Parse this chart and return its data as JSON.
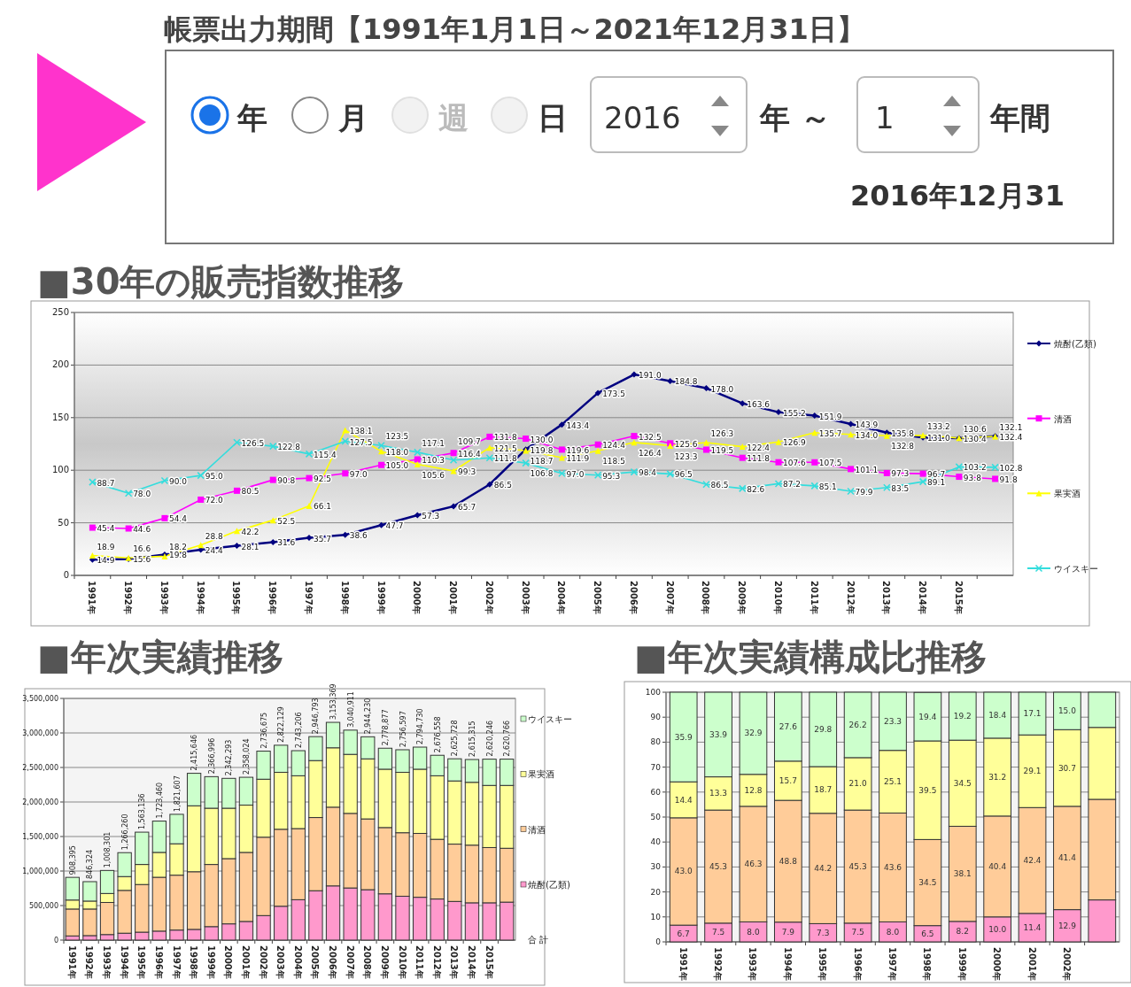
{
  "chart_data": [
    {
      "type": "other",
      "title": "帳票出力期間【1991年1月1日～2021年12月31日】",
      "annotations": [
        "年",
        "月",
        "週",
        "日",
        "2016",
        "年 ～",
        "1",
        "年間",
        "2016年12月31"
      ]
    },
    {
      "type": "line",
      "title": "■30年の販売指数推移",
      "categories": [
        "1991年",
        "1992年",
        "1993年",
        "1994年",
        "1995年",
        "1996年",
        "1997年",
        "1998年",
        "1999年",
        "2000年",
        "2001年",
        "2002年",
        "2003年",
        "2004年",
        "2005年",
        "2006年",
        "2007年",
        "2008年",
        "2009年",
        "2010年",
        "2011年",
        "2012年",
        "2013年",
        "2014年",
        "2015年",
        null
      ],
      "series": [
        {
          "name": "焼酎(乙類)",
          "color": "#000080",
          "marker": "diamond",
          "values": [
            14.9,
            15.6,
            19.8,
            24.4,
            28.1,
            31.6,
            35.7,
            38.6,
            47.7,
            57.3,
            65.7,
            86.5,
            119.8,
            143.4,
            173.5,
            191.0,
            184.8,
            178.0,
            163.6,
            155.2,
            151.9,
            143.9,
            135.8,
            131.0,
            130.4,
            132.4
          ],
          "value_labels": [
            "14.9",
            "15.6",
            "19.8",
            "24.4",
            "28.1",
            "31.6",
            "35.7",
            "38.6",
            "47.7",
            "57.3",
            "65.7",
            "86.5",
            "119.8",
            "143.4",
            "173.5",
            "191.0",
            "184.8",
            "178.0",
            "163.6",
            "155.2",
            "151.9",
            "143.9",
            "135.8",
            "131.0",
            "130.4",
            "132.4"
          ]
        },
        {
          "name": "清酒",
          "color": "#ff00ff",
          "marker": "square",
          "values": [
            45.4,
            44.6,
            54.4,
            72.0,
            80.5,
            90.8,
            92.5,
            97.0,
            105.0,
            110.3,
            116.4,
            131.8,
            130.0,
            119.6,
            124.4,
            132.5,
            125.6,
            119.5,
            111.8,
            107.6,
            107.5,
            101.1,
            97.3,
            96.7,
            93.8,
            91.8
          ],
          "value_labels": [
            "45.4",
            "44.6",
            "54.4",
            "72.0",
            "80.5",
            "90.8",
            "92.5",
            "97.0",
            "105.0",
            "110.3",
            "116.4",
            "131.8",
            "130.0",
            "119.6",
            "124.4",
            "132.5",
            "125.6",
            "119.5",
            "111.8",
            "107.6",
            "107.5",
            "101.1",
            "97.3",
            "96.7",
            "93.8",
            "91.8"
          ]
        },
        {
          "name": "果実酒",
          "color": "#ffff00",
          "marker": "triangle",
          "values": [
            18.9,
            16.6,
            18.2,
            28.8,
            42.2,
            52.5,
            66.1,
            138.1,
            118.0,
            105.6,
            99.3,
            121.5,
            118.7,
            111.9,
            118.5,
            126.4,
            123.3,
            126.3,
            122.4,
            126.9,
            135.7,
            134.0,
            132.8,
            133.2,
            130.6,
            132.1
          ],
          "value_labels": [
            "18.9",
            "16.6",
            "18.2",
            "28.8",
            "42.2",
            "52.5",
            "66.1",
            "138.1",
            "118.0",
            "105.6",
            "99.3",
            "121.5",
            "118.7",
            "111.9",
            "118.5",
            "126.4",
            "123.3",
            "126.3",
            "122.4",
            "126.9",
            "135.7",
            "134.0",
            "132.8",
            "133.2",
            "130.6",
            "132.1"
          ]
        },
        {
          "name": "ウイスキー",
          "color": "#33dddd",
          "marker": "cross",
          "values": [
            88.7,
            78.0,
            90.0,
            95.0,
            126.5,
            122.8,
            115.4,
            127.5,
            123.5,
            117.1,
            109.7,
            111.8,
            106.8,
            97.0,
            95.3,
            98.4,
            96.5,
            86.5,
            82.6,
            87.2,
            85.1,
            79.9,
            83.5,
            89.1,
            103.2,
            102.8
          ],
          "value_labels": [
            "88.7",
            "78.0",
            "90.0",
            "95.0",
            "126.5",
            "122.8",
            "115.4",
            "127.5",
            "123.5",
            "117.1",
            "109.7",
            "111.8",
            "106.8",
            "97.0",
            "95.3",
            "98.4",
            "96.5",
            "86.5",
            "82.6",
            "87.2",
            "85.1",
            "79.9",
            "83.5",
            "89.1",
            "103.2",
            "102.8"
          ]
        }
      ],
      "ylim": [
        0,
        250
      ],
      "yticks": [
        0,
        50,
        100,
        150,
        200,
        250
      ],
      "grid": "y",
      "legend": "right",
      "line_style": "solid"
    },
    {
      "type": "bar",
      "stacked": true,
      "title": "■年次実績推移",
      "categories": [
        "1991年",
        "1992年",
        "1993年",
        "1994年",
        "1995年",
        "1996年",
        "1997年",
        "1998年",
        "1999年",
        "2000年",
        "2001年",
        "2002年",
        "2003年",
        "2004年",
        "2005年",
        "2006年",
        "2007年",
        "2008年",
        "2009年",
        "2010年",
        "2011年",
        "2012年",
        "2013年",
        "2014年",
        "2015年",
        null
      ],
      "series": [
        {
          "name": "焼酎(乙類)",
          "color": "#ff99cc",
          "values": [
            60000,
            65000,
            80000,
            100000,
            115000,
            130000,
            145000,
            155000,
            195000,
            235000,
            270000,
            355000,
            490000,
            585000,
            715000,
            785000,
            755000,
            730000,
            670000,
            635000,
            620000,
            595000,
            560000,
            540000,
            540000,
            550000
          ]
        },
        {
          "name": "清酒",
          "color": "#ffcc99",
          "values": [
            390000,
            385000,
            465000,
            620000,
            690000,
            780000,
            795000,
            835000,
            900000,
            945000,
            1000000,
            1135000,
            1115000,
            1030000,
            1060000,
            1140000,
            1080000,
            1025000,
            960000,
            920000,
            925000,
            865000,
            830000,
            835000,
            800000,
            780000
          ]
        },
        {
          "name": "果実酒",
          "color": "#ffff99",
          "values": [
            130000,
            115000,
            130000,
            200000,
            290000,
            360000,
            455000,
            955000,
            815000,
            730000,
            685000,
            840000,
            825000,
            765000,
            825000,
            860000,
            855000,
            870000,
            845000,
            875000,
            930000,
            920000,
            915000,
            910000,
            900000,
            910000
          ]
        },
        {
          "name": "ウイスキー",
          "color": "#ccffcc",
          "values": [
            328395,
            281324,
            333301,
            346260,
            468136,
            453460,
            426607,
            470646,
            456996,
            432293,
            403024,
            406675,
            392129,
            363206,
            346793,
            368369,
            350911,
            319230,
            303877,
            326597,
            319730,
            296558,
            320728,
            330315,
            380246,
            380766
          ]
        }
      ],
      "totals": [
        "908,395",
        "846,324",
        "1,008,301",
        "1,266,260",
        "1,563,136",
        "1,723,460",
        "1,821,607",
        "2,415,646",
        "2,366,996",
        "2,342,293",
        "2,358,024",
        "2,736,675",
        "2,822,129",
        "2,743,206",
        "2,946,793",
        "3,153,369",
        "3,040,911",
        "2,944,230",
        "2,778,877",
        "2,756,597",
        "2,794,730",
        "2,676,558",
        "2,625,728",
        "2,615,315",
        "2,620,246",
        "2,620,766"
      ],
      "annotations": [
        "合 計"
      ],
      "ylim": [
        0,
        3500000
      ],
      "yticks": [
        0,
        {
          "value": 500000,
          "label": "500,000"
        },
        {
          "value": 1000000,
          "label": "1,000,000"
        },
        {
          "value": 1500000,
          "label": "1,500,000"
        },
        {
          "value": 2000000,
          "label": "2,000,000"
        },
        {
          "value": 2500000,
          "label": "2,500,000"
        },
        {
          "value": 3000000,
          "label": "3,000,000"
        },
        {
          "value": 3500000,
          "label": "3,500,000"
        }
      ],
      "grid": "y",
      "legend": "right"
    },
    {
      "type": "bar",
      "stacked": true,
      "title": "■年次実績構成比推移",
      "categories": [
        "1991年",
        "1992年",
        "1993年",
        "1994年",
        "1995年",
        "1996年",
        "1997年",
        "1998年",
        "1999年",
        "2000年",
        "2001年",
        "2002年",
        null
      ],
      "series": [
        {
          "color": "#ff99cc",
          "values": [
            6.7,
            7.5,
            8.0,
            7.9,
            7.3,
            7.5,
            8.0,
            6.5,
            8.2,
            10.0,
            11.4,
            12.9,
            16.8
          ],
          "value_labels": [
            "6.7",
            "7.5",
            "8.0",
            "7.9",
            "7.3",
            "7.5",
            "8.0",
            "6.5",
            "8.2",
            "10.0",
            "11.4",
            "12.9",
            null
          ]
        },
        {
          "color": "#ffcc99",
          "values": [
            43.0,
            45.3,
            46.3,
            48.8,
            44.2,
            45.3,
            43.6,
            34.5,
            38.1,
            40.4,
            42.4,
            41.4,
            40.3
          ],
          "value_labels": [
            "43.0",
            "45.3",
            "46.3",
            "48.8",
            "44.2",
            "45.3",
            "43.6",
            "34.5",
            "38.1",
            "40.4",
            "42.4",
            "41.4",
            null
          ]
        },
        {
          "color": "#ffff99",
          "values": [
            14.4,
            13.3,
            12.8,
            15.7,
            18.7,
            21.0,
            25.1,
            39.5,
            34.5,
            31.2,
            29.1,
            30.7,
            28.8
          ],
          "value_labels": [
            "14.4",
            "13.3",
            "12.8",
            "15.7",
            "18.7",
            "21.0",
            "25.1",
            "39.5",
            "34.5",
            "31.2",
            "29.1",
            "30.7",
            null
          ]
        },
        {
          "color": "#ccffcc",
          "values": [
            35.9,
            33.9,
            32.9,
            27.6,
            29.8,
            26.2,
            23.3,
            19.4,
            19.2,
            18.4,
            17.1,
            15.0,
            14.1
          ],
          "value_labels": [
            "35.9",
            "33.9",
            "32.9",
            "27.6",
            "29.8",
            "26.2",
            "23.3",
            "19.4",
            "19.2",
            "18.4",
            "17.1",
            "15.0",
            null
          ]
        }
      ],
      "ylim": [
        0,
        100
      ],
      "yticks": [
        0,
        10,
        20,
        30,
        40,
        50,
        60,
        70,
        80,
        90,
        100
      ],
      "grid": "y"
    }
  ]
}
